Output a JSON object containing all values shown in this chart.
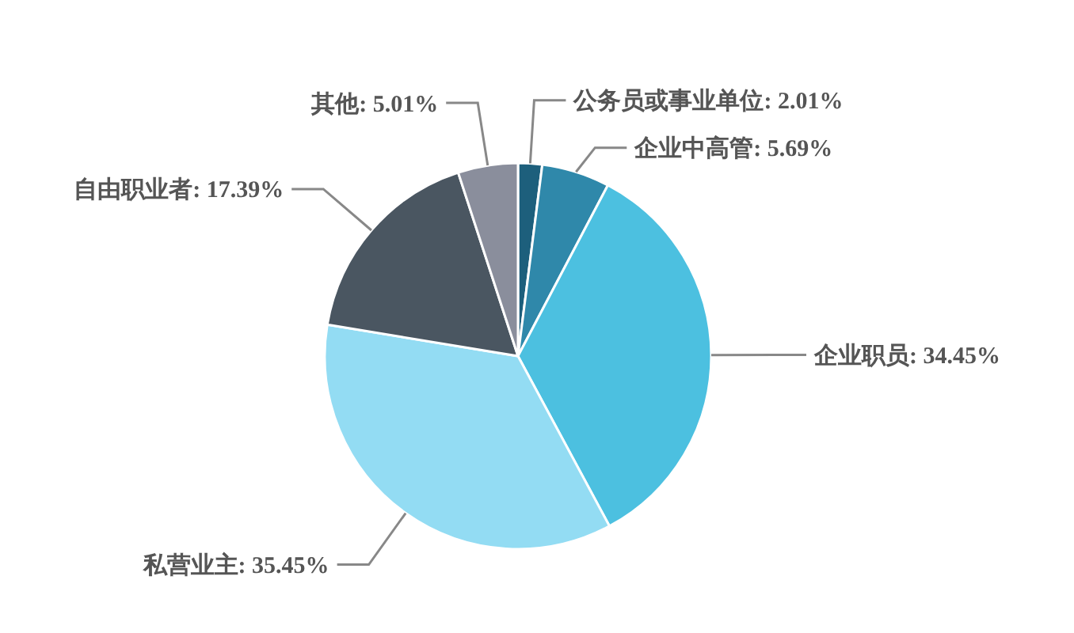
{
  "chart_data": {
    "type": "pie",
    "categories": [
      "公务员或事业单位",
      "企业中高管",
      "企业职员",
      "私营业主",
      "自由职业者",
      "其他"
    ],
    "values": [
      2.01,
      5.69,
      34.45,
      35.45,
      17.39,
      5.01
    ],
    "colors": [
      "#1d5f7c",
      "#2f88aa",
      "#4cc0e0",
      "#93dcf3",
      "#4a5661",
      "#8a8e9c"
    ],
    "value_labels": [
      "2.01%",
      "5.69%",
      "34.45%",
      "35.45%",
      "17.39%",
      "5.01%"
    ]
  }
}
